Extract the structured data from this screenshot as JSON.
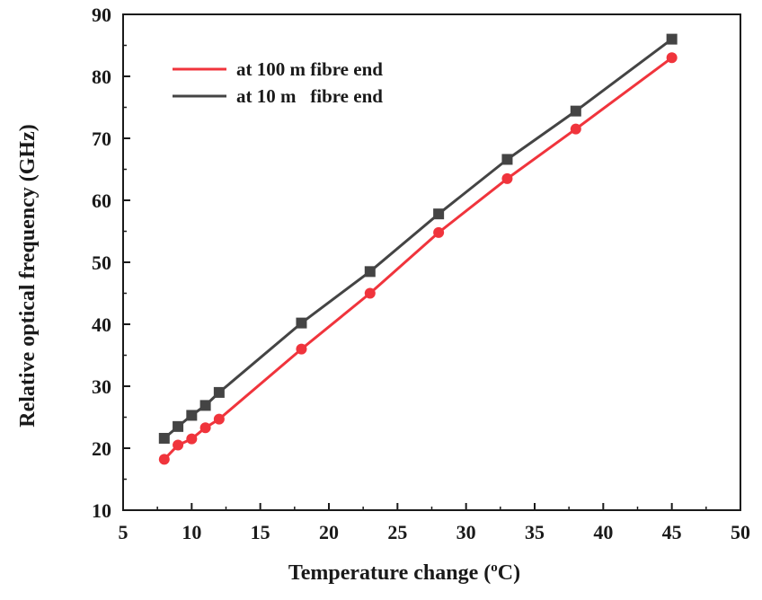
{
  "chart_data": {
    "type": "line",
    "title": "",
    "xlabel": "Temperature change (",
    "xlabel_sup": "o",
    "xlabel_unit": "C)",
    "ylabel": "Relative optical frequency (GHz)",
    "xlim": [
      5,
      50
    ],
    "ylim": [
      10,
      90
    ],
    "xticks": [
      5,
      10,
      15,
      20,
      25,
      30,
      35,
      40,
      45,
      50
    ],
    "yticks": [
      10,
      20,
      30,
      40,
      50,
      60,
      70,
      80,
      90
    ],
    "grid": false,
    "legend_position": "top-left",
    "x": [
      8,
      9,
      10,
      11,
      12,
      18,
      23,
      28,
      33,
      38,
      45
    ],
    "series": [
      {
        "name": "at 100 m fibre end",
        "color": "#f0343c",
        "marker": "circle",
        "values": [
          18.2,
          20.5,
          21.5,
          23.3,
          24.7,
          36.0,
          45.0,
          54.8,
          63.5,
          71.5,
          83.0
        ]
      },
      {
        "name": "at 10 m   fibre end",
        "color": "#444444",
        "marker": "square",
        "values": [
          21.6,
          23.5,
          25.3,
          26.9,
          29.0,
          40.2,
          48.5,
          57.8,
          66.6,
          74.4,
          86.0
        ]
      }
    ]
  }
}
